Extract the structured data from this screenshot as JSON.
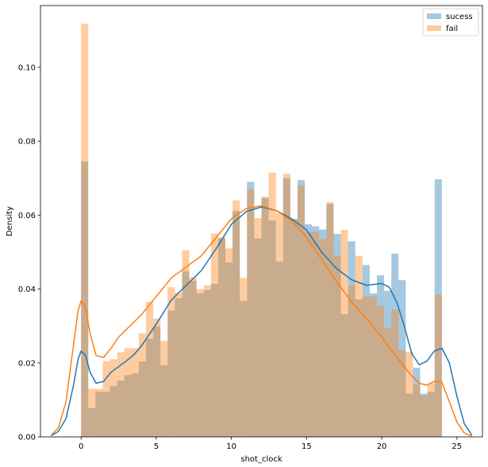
{
  "chart_data": {
    "type": "histogram",
    "xlabel": "shot_clock",
    "ylabel": "Density",
    "xlim": [
      -2.7,
      26.7
    ],
    "ylim": [
      0,
      0.1167
    ],
    "x_ticks": [
      0,
      5,
      10,
      15,
      20,
      25
    ],
    "x_tick_labels": [
      "0",
      "5",
      "10",
      "15",
      "20",
      "25"
    ],
    "y_ticks": [
      0.0,
      0.02,
      0.04,
      0.06,
      0.08,
      0.1
    ],
    "y_tick_labels": [
      "0.00",
      "0.02",
      "0.04",
      "0.06",
      "0.08",
      "0.10"
    ],
    "grid": false,
    "legend_position": "upper right",
    "bins": {
      "start": 0,
      "width": 0.48,
      "count": 50
    },
    "series": [
      {
        "name": "sucess",
        "color": "#1f77b4",
        "hist_values": [
          0.0745,
          0.0078,
          0.0122,
          0.0122,
          0.0137,
          0.0152,
          0.0167,
          0.0172,
          0.0204,
          0.0265,
          0.0299,
          0.0194,
          0.0342,
          0.0375,
          0.0448,
          0.0422,
          0.0388,
          0.0397,
          0.0414,
          0.0537,
          0.0472,
          0.0611,
          0.0368,
          0.069,
          0.0537,
          0.0646,
          0.0585,
          0.0474,
          0.07,
          0.059,
          0.0695,
          0.0575,
          0.057,
          0.0561,
          0.063,
          0.0549,
          0.0332,
          0.0529,
          0.0372,
          0.0465,
          0.0388,
          0.0437,
          0.0395,
          0.0496,
          0.0424,
          0.0117,
          0.0187,
          0.0117,
          0.0122,
          0.0697
        ],
        "kde_x": [
          -2.0,
          -1.5,
          -1.0,
          -0.5,
          -0.2,
          0.0,
          0.3,
          0.6,
          1.0,
          1.5,
          2.0,
          2.5,
          3.0,
          3.5,
          4.0,
          5.0,
          6.0,
          7.0,
          8.0,
          9.0,
          10.0,
          11.0,
          12.0,
          13.0,
          14.0,
          15.0,
          16.0,
          17.0,
          18.0,
          19.0,
          20.0,
          20.5,
          21.0,
          21.5,
          22.0,
          22.5,
          23.0,
          23.5,
          24.0,
          24.5,
          25.0,
          25.5,
          26.0
        ],
        "kde_y": [
          0.0003,
          0.0015,
          0.005,
          0.014,
          0.021,
          0.0232,
          0.022,
          0.0175,
          0.0145,
          0.015,
          0.0175,
          0.019,
          0.0205,
          0.0222,
          0.0245,
          0.0305,
          0.037,
          0.041,
          0.045,
          0.051,
          0.0575,
          0.061,
          0.0622,
          0.0612,
          0.059,
          0.056,
          0.05,
          0.0455,
          0.0425,
          0.041,
          0.0415,
          0.0405,
          0.0365,
          0.03,
          0.0225,
          0.0195,
          0.0205,
          0.0232,
          0.024,
          0.02,
          0.011,
          0.0035,
          0.0005
        ]
      },
      {
        "name": "fail",
        "color": "#ff7f0e",
        "hist_values": [
          0.1118,
          0.013,
          0.013,
          0.0205,
          0.021,
          0.0229,
          0.024,
          0.024,
          0.028,
          0.0365,
          0.032,
          0.026,
          0.0405,
          0.039,
          0.0505,
          0.0432,
          0.04,
          0.041,
          0.055,
          0.054,
          0.051,
          0.064,
          0.043,
          0.067,
          0.0592,
          0.065,
          0.0715,
          0.0605,
          0.0712,
          0.0588,
          0.068,
          0.0555,
          0.0555,
          0.0535,
          0.0635,
          0.049,
          0.056,
          0.041,
          0.049,
          0.038,
          0.038,
          0.0355,
          0.0295,
          0.0345,
          0.0235,
          0.023,
          0.0142,
          0.0112,
          0.0145,
          0.0385
        ],
        "kde_x": [
          -2.0,
          -1.5,
          -1.0,
          -0.5,
          -0.2,
          0.0,
          0.3,
          0.6,
          1.0,
          1.5,
          2.0,
          2.5,
          3.0,
          3.5,
          4.0,
          5.0,
          6.0,
          7.0,
          8.0,
          9.0,
          10.0,
          11.0,
          12.0,
          13.0,
          14.0,
          15.0,
          16.0,
          17.0,
          18.0,
          19.0,
          20.0,
          20.5,
          21.0,
          21.5,
          22.0,
          22.5,
          23.0,
          23.5,
          24.0,
          24.5,
          25.0,
          25.5,
          26.0
        ],
        "kde_y": [
          0.0004,
          0.0025,
          0.0095,
          0.025,
          0.034,
          0.0368,
          0.035,
          0.028,
          0.022,
          0.0215,
          0.024,
          0.027,
          0.029,
          0.031,
          0.033,
          0.038,
          0.043,
          0.046,
          0.049,
          0.054,
          0.059,
          0.0618,
          0.0625,
          0.0612,
          0.0585,
          0.054,
          0.048,
          0.042,
          0.0365,
          0.032,
          0.027,
          0.0242,
          0.0215,
          0.019,
          0.0165,
          0.0145,
          0.014,
          0.015,
          0.0148,
          0.0095,
          0.004,
          0.001,
          0.0002
        ]
      }
    ]
  }
}
